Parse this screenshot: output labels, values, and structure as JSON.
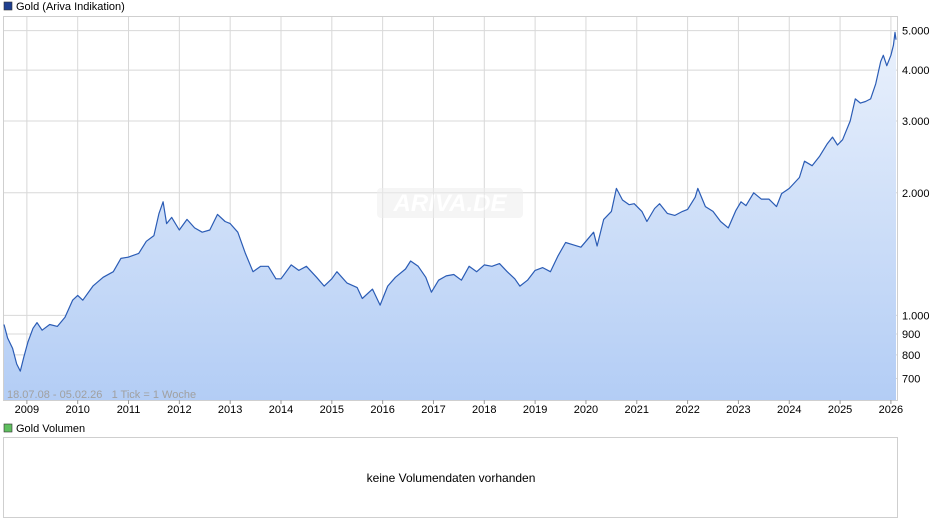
{
  "colors": {
    "line": "#2b5cb5",
    "area_top": "#eaf1fc",
    "area_bottom": "#b3cdf5",
    "grid": "#d8d8d8",
    "legend_price": "#1f3f8f",
    "legend_volume": "#5fbf5f"
  },
  "watermark": "ARIVA.DE",
  "price_panel": {
    "legend": "Gold (Ariva Indikation)",
    "info": "18.07.08 - 05.02.26   1 Tick = 1 Woche"
  },
  "volume_panel": {
    "legend": "Gold Volumen",
    "message": "keine Volumendaten vorhanden"
  },
  "chart_data": {
    "type": "area",
    "title": "Gold (Ariva Indikation)",
    "date_range": [
      "18.07.08",
      "05.02.26"
    ],
    "y_scale": "log",
    "ylim": [
      620,
      5400
    ],
    "xlim": [
      2008.55,
      2026.12
    ],
    "grid": true,
    "y_ticks": [
      {
        "value": 700,
        "label": "700"
      },
      {
        "value": 800,
        "label": "800"
      },
      {
        "value": 900,
        "label": "900"
      },
      {
        "value": 1000,
        "label": "1.000"
      },
      {
        "value": 2000,
        "label": "2.000"
      },
      {
        "value": 3000,
        "label": "3.000"
      },
      {
        "value": 4000,
        "label": "4.000"
      },
      {
        "value": 5000,
        "label": "5.000"
      }
    ],
    "x_ticks": [
      {
        "value": 2009,
        "label": "2009"
      },
      {
        "value": 2010,
        "label": "2010"
      },
      {
        "value": 2011,
        "label": "2011"
      },
      {
        "value": 2012,
        "label": "2012"
      },
      {
        "value": 2013,
        "label": "2013"
      },
      {
        "value": 2014,
        "label": "2014"
      },
      {
        "value": 2015,
        "label": "2015"
      },
      {
        "value": 2016,
        "label": "2016"
      },
      {
        "value": 2017,
        "label": "2017"
      },
      {
        "value": 2018,
        "label": "2018"
      },
      {
        "value": 2019,
        "label": "2019"
      },
      {
        "value": 2020,
        "label": "2020"
      },
      {
        "value": 2021,
        "label": "2021"
      },
      {
        "value": 2022,
        "label": "2022"
      },
      {
        "value": 2023,
        "label": "2023"
      },
      {
        "value": 2024,
        "label": "2024"
      },
      {
        "value": 2025,
        "label": "2025"
      },
      {
        "value": 2026,
        "label": "2026"
      }
    ],
    "series": [
      {
        "name": "Gold (Ariva Indikation)",
        "points": [
          [
            2008.55,
            950
          ],
          [
            2008.62,
            880
          ],
          [
            2008.72,
            830
          ],
          [
            2008.8,
            760
          ],
          [
            2008.87,
            730
          ],
          [
            2008.94,
            790
          ],
          [
            2009.02,
            860
          ],
          [
            2009.12,
            930
          ],
          [
            2009.2,
            960
          ],
          [
            2009.3,
            920
          ],
          [
            2009.45,
            950
          ],
          [
            2009.6,
            940
          ],
          [
            2009.75,
            990
          ],
          [
            2009.9,
            1090
          ],
          [
            2010.0,
            1120
          ],
          [
            2010.1,
            1090
          ],
          [
            2010.3,
            1180
          ],
          [
            2010.5,
            1240
          ],
          [
            2010.7,
            1280
          ],
          [
            2010.85,
            1380
          ],
          [
            2011.0,
            1390
          ],
          [
            2011.2,
            1420
          ],
          [
            2011.35,
            1520
          ],
          [
            2011.5,
            1570
          ],
          [
            2011.6,
            1780
          ],
          [
            2011.68,
            1900
          ],
          [
            2011.75,
            1680
          ],
          [
            2011.85,
            1740
          ],
          [
            2012.0,
            1620
          ],
          [
            2012.15,
            1720
          ],
          [
            2012.3,
            1640
          ],
          [
            2012.45,
            1600
          ],
          [
            2012.6,
            1620
          ],
          [
            2012.75,
            1770
          ],
          [
            2012.9,
            1700
          ],
          [
            2013.0,
            1680
          ],
          [
            2013.15,
            1600
          ],
          [
            2013.3,
            1420
          ],
          [
            2013.45,
            1280
          ],
          [
            2013.6,
            1320
          ],
          [
            2013.75,
            1320
          ],
          [
            2013.9,
            1230
          ],
          [
            2014.0,
            1230
          ],
          [
            2014.2,
            1330
          ],
          [
            2014.35,
            1290
          ],
          [
            2014.5,
            1320
          ],
          [
            2014.7,
            1240
          ],
          [
            2014.85,
            1180
          ],
          [
            2015.0,
            1230
          ],
          [
            2015.1,
            1280
          ],
          [
            2015.3,
            1200
          ],
          [
            2015.5,
            1170
          ],
          [
            2015.6,
            1100
          ],
          [
            2015.8,
            1160
          ],
          [
            2015.95,
            1060
          ],
          [
            2016.1,
            1180
          ],
          [
            2016.25,
            1240
          ],
          [
            2016.45,
            1300
          ],
          [
            2016.55,
            1360
          ],
          [
            2016.7,
            1320
          ],
          [
            2016.85,
            1240
          ],
          [
            2016.96,
            1140
          ],
          [
            2017.1,
            1220
          ],
          [
            2017.25,
            1250
          ],
          [
            2017.4,
            1260
          ],
          [
            2017.55,
            1220
          ],
          [
            2017.7,
            1320
          ],
          [
            2017.85,
            1280
          ],
          [
            2018.0,
            1330
          ],
          [
            2018.15,
            1320
          ],
          [
            2018.3,
            1340
          ],
          [
            2018.45,
            1280
          ],
          [
            2018.6,
            1230
          ],
          [
            2018.7,
            1180
          ],
          [
            2018.85,
            1220
          ],
          [
            2019.0,
            1290
          ],
          [
            2019.15,
            1310
          ],
          [
            2019.3,
            1280
          ],
          [
            2019.45,
            1400
          ],
          [
            2019.6,
            1510
          ],
          [
            2019.75,
            1490
          ],
          [
            2019.9,
            1470
          ],
          [
            2020.0,
            1520
          ],
          [
            2020.15,
            1600
          ],
          [
            2020.22,
            1480
          ],
          [
            2020.35,
            1720
          ],
          [
            2020.5,
            1800
          ],
          [
            2020.6,
            2050
          ],
          [
            2020.72,
            1920
          ],
          [
            2020.85,
            1870
          ],
          [
            2020.95,
            1880
          ],
          [
            2021.1,
            1800
          ],
          [
            2021.2,
            1700
          ],
          [
            2021.35,
            1830
          ],
          [
            2021.45,
            1880
          ],
          [
            2021.6,
            1780
          ],
          [
            2021.75,
            1760
          ],
          [
            2021.9,
            1800
          ],
          [
            2022.0,
            1820
          ],
          [
            2022.15,
            1950
          ],
          [
            2022.2,
            2050
          ],
          [
            2022.35,
            1850
          ],
          [
            2022.5,
            1800
          ],
          [
            2022.65,
            1700
          ],
          [
            2022.8,
            1640
          ],
          [
            2022.95,
            1810
          ],
          [
            2023.05,
            1900
          ],
          [
            2023.15,
            1860
          ],
          [
            2023.3,
            2000
          ],
          [
            2023.45,
            1930
          ],
          [
            2023.6,
            1930
          ],
          [
            2023.75,
            1850
          ],
          [
            2023.85,
            1990
          ],
          [
            2024.0,
            2050
          ],
          [
            2024.2,
            2180
          ],
          [
            2024.3,
            2390
          ],
          [
            2024.45,
            2330
          ],
          [
            2024.6,
            2460
          ],
          [
            2024.75,
            2640
          ],
          [
            2024.85,
            2740
          ],
          [
            2024.95,
            2620
          ],
          [
            2025.05,
            2700
          ],
          [
            2025.2,
            3000
          ],
          [
            2025.3,
            3400
          ],
          [
            2025.4,
            3320
          ],
          [
            2025.5,
            3350
          ],
          [
            2025.6,
            3400
          ],
          [
            2025.7,
            3700
          ],
          [
            2025.8,
            4200
          ],
          [
            2025.85,
            4350
          ],
          [
            2025.92,
            4100
          ],
          [
            2026.0,
            4350
          ],
          [
            2026.05,
            4600
          ],
          [
            2026.08,
            4950
          ],
          [
            2026.1,
            4750
          ]
        ]
      }
    ]
  }
}
